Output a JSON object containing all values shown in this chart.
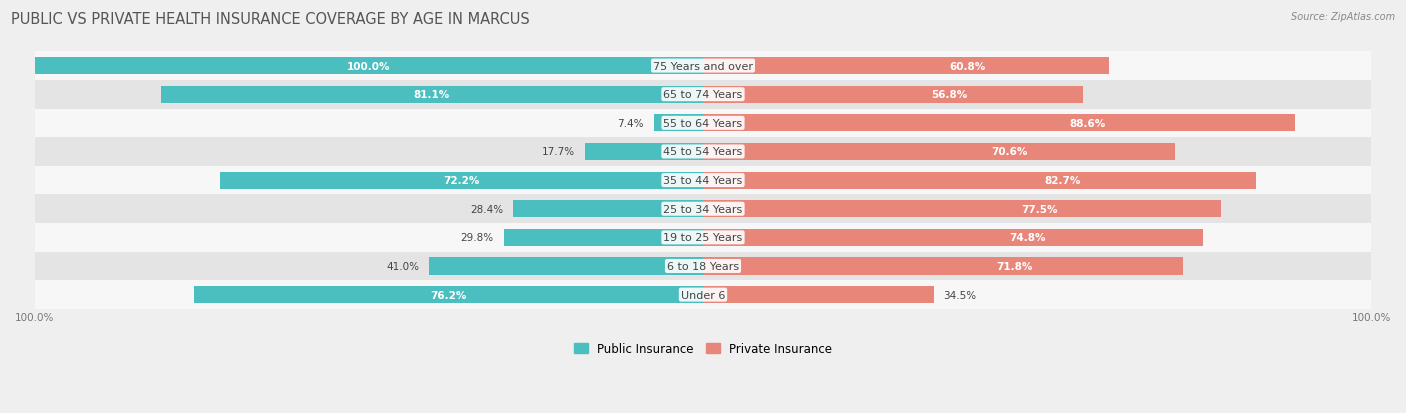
{
  "title": "PUBLIC VS PRIVATE HEALTH INSURANCE COVERAGE BY AGE IN MARCUS",
  "source": "Source: ZipAtlas.com",
  "categories": [
    "Under 6",
    "6 to 18 Years",
    "19 to 25 Years",
    "25 to 34 Years",
    "35 to 44 Years",
    "45 to 54 Years",
    "55 to 64 Years",
    "65 to 74 Years",
    "75 Years and over"
  ],
  "public_values": [
    76.2,
    41.0,
    29.8,
    28.4,
    72.2,
    17.7,
    7.4,
    81.1,
    100.0
  ],
  "private_values": [
    34.5,
    71.8,
    74.8,
    77.5,
    82.7,
    70.6,
    88.6,
    56.8,
    60.8
  ],
  "public_color": "#4bbfbf",
  "private_color": "#e8867a",
  "background_color": "#efefef",
  "row_bg_light": "#f7f7f7",
  "row_bg_dark": "#e4e4e4",
  "title_fontsize": 10.5,
  "label_fontsize": 8.0,
  "value_fontsize": 7.5,
  "max_value": 100.0,
  "legend_labels": [
    "Public Insurance",
    "Private Insurance"
  ]
}
